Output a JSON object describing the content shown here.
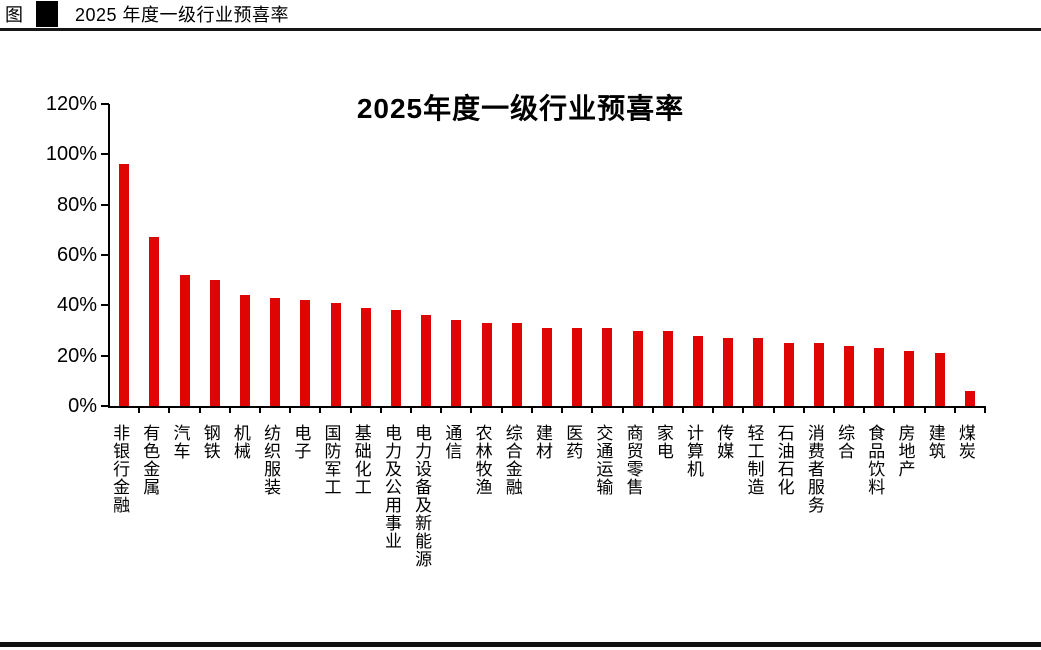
{
  "header": {
    "figure_label": "图",
    "figure_number": "[redacted]",
    "figure_title": "2025 年度一级行业预喜率"
  },
  "chart_data": {
    "type": "bar",
    "title": "2025年度一级行业预喜率",
    "categories": [
      "非银行金融",
      "有色金属",
      "汽车",
      "钢铁",
      "机械",
      "纺织服装",
      "电子",
      "国防军工",
      "基础化工",
      "电力及公用事业",
      "电力设备及新能源",
      "通信",
      "农林牧渔",
      "综合金融",
      "建材",
      "医药",
      "交通运输",
      "商贸零售",
      "家电",
      "计算机",
      "传媒",
      "轻工制造",
      "石油石化",
      "消费者服务",
      "综合",
      "食品饮料",
      "房地产",
      "建筑",
      "煤炭"
    ],
    "values": [
      96,
      67,
      52,
      50,
      44,
      43,
      42,
      41,
      39,
      38,
      36,
      34,
      33,
      33,
      31,
      31,
      31,
      30,
      30,
      28,
      27,
      27,
      25,
      25,
      24,
      23,
      22,
      21,
      6
    ],
    "unit": "%",
    "xlabel": "",
    "ylabel": "",
    "ylim": [
      0,
      120
    ],
    "y_ticks": [
      "0%",
      "20%",
      "40%",
      "60%",
      "80%",
      "100%",
      "120%"
    ],
    "grid": false,
    "legend": "none",
    "bar_color": "#e00505",
    "axis_color": "#000000"
  }
}
